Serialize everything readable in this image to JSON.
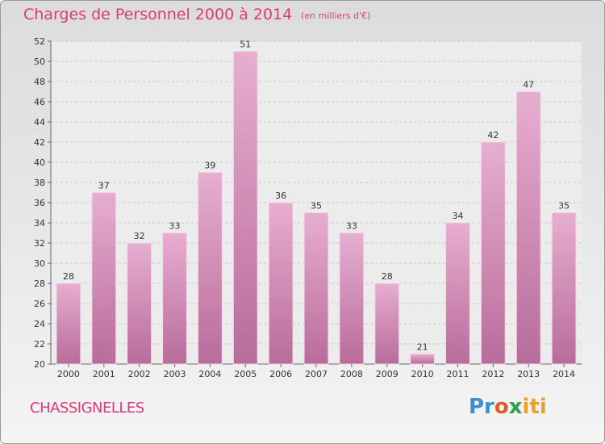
{
  "title": "Charges de Personnel 2000 à 2014",
  "subtitle": "(en milliers d'€)",
  "city": "CHASSIGNELLES",
  "logo": {
    "p1": "Pr",
    "p2": "o",
    "p3": "x",
    "p4": "iti"
  },
  "colors": {
    "bar": "#d48fb8",
    "accent": "#e0397a"
  },
  "chart_data": {
    "type": "bar",
    "title": "Charges de Personnel 2000 à 2014",
    "subtitle": "(en milliers d'€)",
    "xlabel": "",
    "ylabel": "",
    "categories": [
      "2000",
      "2001",
      "2002",
      "2003",
      "2004",
      "2005",
      "2006",
      "2007",
      "2008",
      "2009",
      "2010",
      "2011",
      "2012",
      "2013",
      "2014"
    ],
    "values": [
      28,
      37,
      32,
      33,
      39,
      51,
      36,
      35,
      33,
      28,
      21,
      34,
      42,
      47,
      35
    ],
    "ylim": [
      20,
      52
    ],
    "yticks": [
      20,
      22,
      24,
      26,
      28,
      30,
      32,
      34,
      36,
      38,
      40,
      42,
      44,
      46,
      48,
      50,
      52
    ],
    "grid": true,
    "legend": "none"
  }
}
